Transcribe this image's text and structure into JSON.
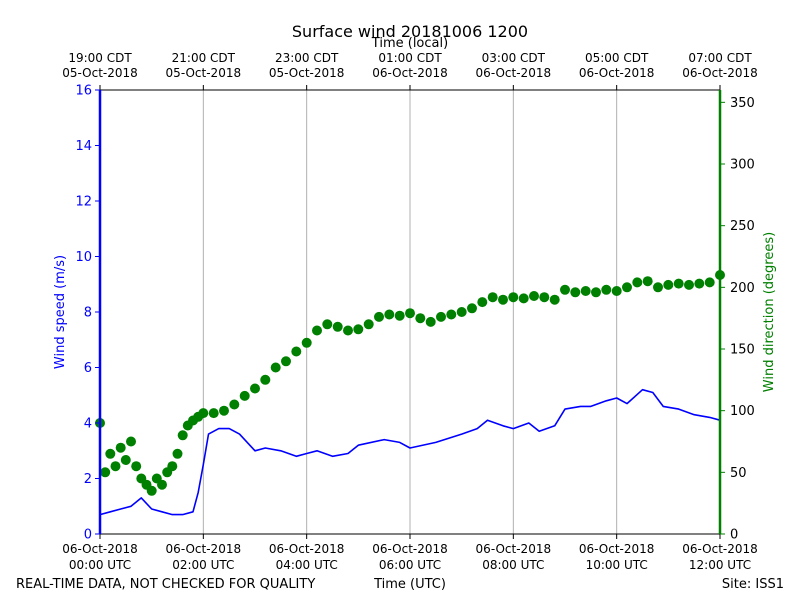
{
  "chart_data": {
    "type": "line",
    "title": "Surface wind 20181006 1200",
    "top_axis_label": "Time (local)",
    "xlabel": "Time (UTC)",
    "ylabel_left": "Wind speed (m/s)",
    "ylabel_right": "Wind direction (degrees)",
    "footer_left": "REAL-TIME DATA, NOT CHECKED FOR QUALITY",
    "footer_right": "Site: ISS1",
    "x_unit_hours": [
      0,
      12
    ],
    "ylim_left": [
      0,
      16
    ],
    "ylim_right": [
      0,
      360
    ],
    "grid": "vertical",
    "bottom_ticks": [
      {
        "line1": "06-Oct-2018",
        "line2": "00:00 UTC"
      },
      {
        "line1": "06-Oct-2018",
        "line2": "02:00 UTC"
      },
      {
        "line1": "06-Oct-2018",
        "line2": "04:00 UTC"
      },
      {
        "line1": "06-Oct-2018",
        "line2": "06:00 UTC"
      },
      {
        "line1": "06-Oct-2018",
        "line2": "08:00 UTC"
      },
      {
        "line1": "06-Oct-2018",
        "line2": "10:00 UTC"
      },
      {
        "line1": "06-Oct-2018",
        "line2": "12:00 UTC"
      }
    ],
    "top_ticks": [
      {
        "line1": "19:00 CDT",
        "line2": "05-Oct-2018"
      },
      {
        "line1": "21:00 CDT",
        "line2": "05-Oct-2018"
      },
      {
        "line1": "23:00 CDT",
        "line2": "05-Oct-2018"
      },
      {
        "line1": "01:00 CDT",
        "line2": "06-Oct-2018"
      },
      {
        "line1": "03:00 CDT",
        "line2": "06-Oct-2018"
      },
      {
        "line1": "05:00 CDT",
        "line2": "06-Oct-2018"
      },
      {
        "line1": "07:00 CDT",
        "line2": "06-Oct-2018"
      }
    ],
    "left_ticks": [
      "0",
      "2",
      "4",
      "6",
      "8",
      "10",
      "12",
      "14",
      "16"
    ],
    "right_ticks": [
      "0",
      "50",
      "100",
      "150",
      "200",
      "250",
      "300",
      "350"
    ],
    "series": [
      {
        "axis": "left",
        "style": "line",
        "color": "#0000ff",
        "x": [
          0,
          0.2,
          0.4,
          0.6,
          0.8,
          1.0,
          1.2,
          1.4,
          1.6,
          1.8,
          1.9,
          2.0,
          2.1,
          2.3,
          2.5,
          2.7,
          3.0,
          3.2,
          3.5,
          3.8,
          4.0,
          4.2,
          4.5,
          4.8,
          5.0,
          5.5,
          5.8,
          6.0,
          6.5,
          7.0,
          7.3,
          7.5,
          7.8,
          8.0,
          8.3,
          8.5,
          8.8,
          9.0,
          9.3,
          9.5,
          9.8,
          10.0,
          10.2,
          10.5,
          10.7,
          10.9,
          11.2,
          11.5,
          11.8,
          12.0
        ],
        "y": [
          0.7,
          0.8,
          0.9,
          1.0,
          1.3,
          0.9,
          0.8,
          0.7,
          0.7,
          0.8,
          1.5,
          2.5,
          3.6,
          3.8,
          3.8,
          3.6,
          3.0,
          3.1,
          3.0,
          2.8,
          2.9,
          3.0,
          2.8,
          2.9,
          3.2,
          3.4,
          3.3,
          3.1,
          3.3,
          3.6,
          3.8,
          4.1,
          3.9,
          3.8,
          4.0,
          3.7,
          3.9,
          4.5,
          4.6,
          4.6,
          4.8,
          4.9,
          4.7,
          5.2,
          5.1,
          4.6,
          4.5,
          4.3,
          4.2,
          4.1
        ]
      },
      {
        "axis": "right",
        "style": "markers",
        "color": "#008000",
        "x": [
          0,
          0.1,
          0.2,
          0.3,
          0.4,
          0.5,
          0.6,
          0.7,
          0.8,
          0.9,
          1.0,
          1.1,
          1.2,
          1.3,
          1.4,
          1.5,
          1.6,
          1.7,
          1.8,
          1.9,
          2.0,
          2.2,
          2.4,
          2.6,
          2.8,
          3.0,
          3.2,
          3.4,
          3.6,
          3.8,
          4.0,
          4.2,
          4.4,
          4.6,
          4.8,
          5.0,
          5.2,
          5.4,
          5.6,
          5.8,
          6.0,
          6.2,
          6.4,
          6.6,
          6.8,
          7.0,
          7.2,
          7.4,
          7.6,
          7.8,
          8.0,
          8.2,
          8.4,
          8.6,
          8.8,
          9.0,
          9.2,
          9.4,
          9.6,
          9.8,
          10.0,
          10.2,
          10.4,
          10.6,
          10.8,
          11.0,
          11.2,
          11.4,
          11.6,
          11.8,
          12.0
        ],
        "y": [
          90,
          50,
          65,
          55,
          70,
          60,
          75,
          55,
          45,
          40,
          35,
          45,
          40,
          50,
          55,
          65,
          80,
          88,
          92,
          95,
          98,
          98,
          100,
          105,
          112,
          118,
          125,
          135,
          140,
          148,
          155,
          165,
          170,
          168,
          165,
          166,
          170,
          176,
          178,
          177,
          179,
          175,
          172,
          176,
          178,
          180,
          183,
          188,
          192,
          190,
          192,
          191,
          193,
          192,
          190,
          198,
          196,
          197,
          196,
          198,
          197,
          200,
          204,
          205,
          200,
          202,
          203,
          202,
          203,
          204,
          210
        ]
      }
    ]
  }
}
